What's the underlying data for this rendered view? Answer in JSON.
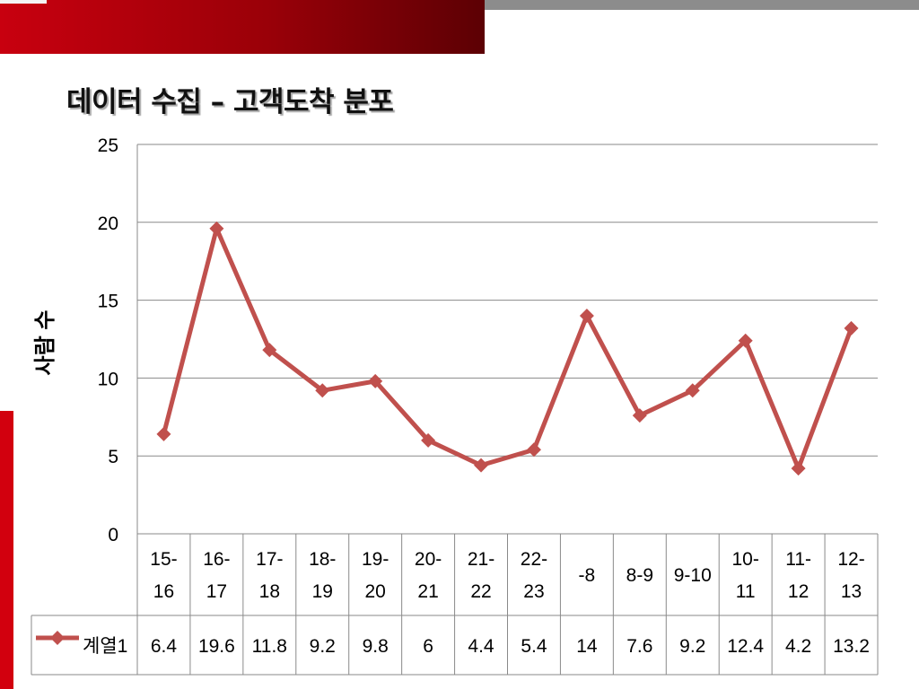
{
  "slide": {
    "title": "데이터 수집 – 고객도착 분포",
    "accent_color": "#c8000f",
    "gray_bar_color": "#8c8c8c"
  },
  "chart_data": {
    "type": "line",
    "title": "",
    "xlabel": "",
    "ylabel": "사람 수",
    "ylim": [
      0,
      25
    ],
    "yticks": [
      0,
      5,
      10,
      15,
      20,
      25
    ],
    "grid": "horizontal",
    "categories": [
      [
        "15-",
        "16"
      ],
      [
        "16-",
        "17"
      ],
      [
        "17-",
        "18"
      ],
      [
        "18-",
        "19"
      ],
      [
        "19-",
        "20"
      ],
      [
        "20-",
        "21"
      ],
      [
        "21-",
        "22"
      ],
      [
        "22-",
        "23"
      ],
      [
        "-8"
      ],
      [
        "8-9"
      ],
      [
        "9-10"
      ],
      [
        "10-",
        "11"
      ],
      [
        "11-",
        "12"
      ],
      [
        "12-",
        "13"
      ]
    ],
    "series": [
      {
        "name": "계열1",
        "color": "#c0504d",
        "marker": "diamond",
        "values": [
          6.4,
          19.6,
          11.8,
          9.2,
          9.8,
          6,
          4.4,
          5.4,
          14,
          7.6,
          9.2,
          12.4,
          4.2,
          13.2
        ],
        "value_labels": [
          "6.4",
          "19.6",
          "11.8",
          "9.2",
          "9.8",
          "6",
          "4.4",
          "5.4",
          "14",
          "7.6",
          "9.2",
          "12.4",
          "4.2",
          "13.2"
        ]
      }
    ],
    "data_table": true
  }
}
